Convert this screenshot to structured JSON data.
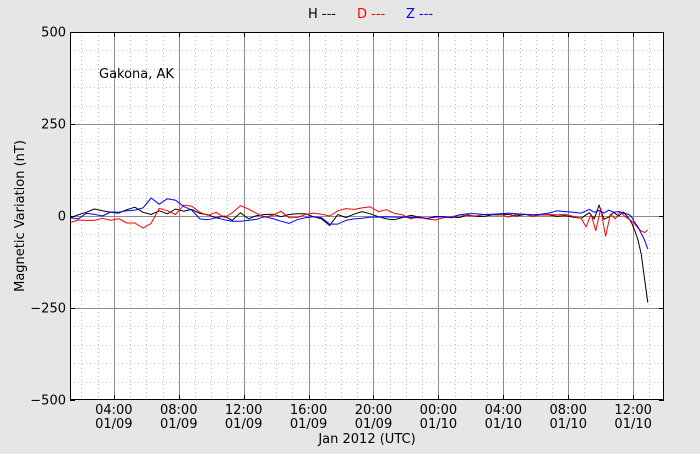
{
  "chart_data": {
    "type": "line",
    "station": "Gakona, AK",
    "ylabel": "Magnetic Variation (nT)",
    "xlabel": "Jan 2012 (UTC)",
    "ylim": [
      -500,
      500
    ],
    "yticks": [
      -500,
      -250,
      0,
      250,
      500
    ],
    "ytick_labels": [
      "−500",
      "−250",
      "0",
      "250",
      "500"
    ],
    "xlim": [
      1.3,
      37.9
    ],
    "xticks": [
      {
        "hours": 4,
        "time": "04:00",
        "date": "01/09"
      },
      {
        "hours": 8,
        "time": "08:00",
        "date": "01/09"
      },
      {
        "hours": 12,
        "time": "12:00",
        "date": "01/09"
      },
      {
        "hours": 16,
        "time": "16:00",
        "date": "01/09"
      },
      {
        "hours": 20,
        "time": "20:00",
        "date": "01/09"
      },
      {
        "hours": 24,
        "time": "00:00",
        "date": "01/10"
      },
      {
        "hours": 28,
        "time": "04:00",
        "date": "01/10"
      },
      {
        "hours": 32,
        "time": "08:00",
        "date": "01/10"
      },
      {
        "hours": 36,
        "time": "12:00",
        "date": "01/10"
      }
    ],
    "grid": true,
    "legend_placement": "top-center",
    "series": [
      {
        "name": "H ---",
        "color": "#000000",
        "points": [
          [
            1.3,
            -5
          ],
          [
            1.8,
            3
          ],
          [
            2.3,
            10
          ],
          [
            2.8,
            19
          ],
          [
            3.3,
            14
          ],
          [
            3.8,
            10
          ],
          [
            4.3,
            8
          ],
          [
            4.8,
            17
          ],
          [
            5.3,
            24
          ],
          [
            5.8,
            10
          ],
          [
            6.3,
            4
          ],
          [
            6.8,
            14
          ],
          [
            7.3,
            6
          ],
          [
            7.8,
            19
          ],
          [
            8.3,
            13
          ],
          [
            8.8,
            18
          ],
          [
            9.3,
            7
          ],
          [
            9.8,
            3
          ],
          [
            10.3,
            -5
          ],
          [
            10.8,
            0
          ],
          [
            11.3,
            -12
          ],
          [
            11.8,
            9
          ],
          [
            12.3,
            -8
          ],
          [
            12.8,
            1
          ],
          [
            13.3,
            4
          ],
          [
            13.8,
            5
          ],
          [
            14.3,
            -2
          ],
          [
            14.8,
            4
          ],
          [
            15.3,
            6
          ],
          [
            15.8,
            6
          ],
          [
            16.3,
            -2
          ],
          [
            16.8,
            -8
          ],
          [
            17.3,
            -26
          ],
          [
            17.8,
            4
          ],
          [
            18.3,
            -4
          ],
          [
            18.8,
            5
          ],
          [
            19.3,
            12
          ],
          [
            19.8,
            6
          ],
          [
            20.3,
            -2
          ],
          [
            20.8,
            -8
          ],
          [
            21.3,
            -10
          ],
          [
            21.8,
            -4
          ],
          [
            22.3,
            2
          ],
          [
            22.8,
            -3
          ],
          [
            23.3,
            -8
          ],
          [
            23.8,
            -1
          ],
          [
            24.3,
            -2
          ],
          [
            24.8,
            -3
          ],
          [
            25.3,
            -4
          ],
          [
            25.8,
            3
          ],
          [
            26.3,
            -1
          ],
          [
            26.8,
            -1
          ],
          [
            27.3,
            3
          ],
          [
            27.8,
            3
          ],
          [
            28.3,
            5
          ],
          [
            28.8,
            0
          ],
          [
            29.3,
            4
          ],
          [
            29.8,
            3
          ],
          [
            30.3,
            3
          ],
          [
            30.8,
            3
          ],
          [
            31.3,
            -1
          ],
          [
            31.8,
            1
          ],
          [
            32.3,
            -3
          ],
          [
            32.8,
            -6
          ],
          [
            33.3,
            9
          ],
          [
            33.6,
            -8
          ],
          [
            33.9,
            30
          ],
          [
            34.2,
            -9
          ],
          [
            34.5,
            -3
          ],
          [
            34.8,
            10
          ],
          [
            35.1,
            0
          ],
          [
            35.4,
            11
          ],
          [
            35.7,
            -5
          ],
          [
            35.9,
            -18
          ],
          [
            36.1,
            -40
          ],
          [
            36.3,
            -65
          ],
          [
            36.5,
            -105
          ],
          [
            36.7,
            -170
          ],
          [
            36.9,
            -235
          ]
        ]
      },
      {
        "name": "D ---",
        "color": "#ff0000",
        "points": [
          [
            1.3,
            -18
          ],
          [
            1.8,
            -11
          ],
          [
            2.3,
            -12
          ],
          [
            2.8,
            -12
          ],
          [
            3.3,
            -6
          ],
          [
            3.8,
            -12
          ],
          [
            4.3,
            -7
          ],
          [
            4.8,
            -19
          ],
          [
            5.3,
            -19
          ],
          [
            5.8,
            -33
          ],
          [
            6.3,
            -20
          ],
          [
            6.8,
            21
          ],
          [
            7.3,
            14
          ],
          [
            7.8,
            4
          ],
          [
            8.3,
            29
          ],
          [
            8.8,
            27
          ],
          [
            9.3,
            10
          ],
          [
            9.8,
            2
          ],
          [
            10.3,
            10
          ],
          [
            10.8,
            -4
          ],
          [
            11.3,
            9
          ],
          [
            11.8,
            28
          ],
          [
            12.3,
            19
          ],
          [
            12.8,
            7
          ],
          [
            13.3,
            -3
          ],
          [
            13.8,
            2
          ],
          [
            14.3,
            13
          ],
          [
            14.8,
            -5
          ],
          [
            15.3,
            -4
          ],
          [
            15.8,
            4
          ],
          [
            16.3,
            8
          ],
          [
            16.8,
            5
          ],
          [
            17.3,
            0
          ],
          [
            17.8,
            14
          ],
          [
            18.3,
            20
          ],
          [
            18.8,
            18
          ],
          [
            19.3,
            22
          ],
          [
            19.8,
            25
          ],
          [
            20.3,
            12
          ],
          [
            20.8,
            17
          ],
          [
            21.3,
            7
          ],
          [
            21.8,
            3
          ],
          [
            22.3,
            -8
          ],
          [
            22.8,
            -1
          ],
          [
            23.3,
            -8
          ],
          [
            23.8,
            -11
          ],
          [
            24.3,
            -5
          ],
          [
            24.8,
            -2
          ],
          [
            25.3,
            3
          ],
          [
            25.8,
            1
          ],
          [
            26.3,
            0
          ],
          [
            26.8,
            4
          ],
          [
            27.3,
            4
          ],
          [
            27.8,
            5
          ],
          [
            28.3,
            -3
          ],
          [
            28.8,
            4
          ],
          [
            29.3,
            5
          ],
          [
            29.8,
            -1
          ],
          [
            30.3,
            3
          ],
          [
            30.8,
            4
          ],
          [
            31.3,
            3
          ],
          [
            31.8,
            5
          ],
          [
            32.3,
            -1
          ],
          [
            32.8,
            -6
          ],
          [
            33.1,
            -30
          ],
          [
            33.4,
            5
          ],
          [
            33.7,
            -40
          ],
          [
            34.0,
            20
          ],
          [
            34.3,
            -55
          ],
          [
            34.6,
            5
          ],
          [
            34.9,
            -8
          ],
          [
            35.2,
            12
          ],
          [
            35.5,
            -2
          ],
          [
            35.8,
            -10
          ],
          [
            36.1,
            -22
          ],
          [
            36.4,
            -38
          ],
          [
            36.7,
            -45
          ],
          [
            36.9,
            -38
          ]
        ]
      },
      {
        "name": "Z ---",
        "color": "#0000ff",
        "points": [
          [
            1.3,
            -5
          ],
          [
            1.8,
            -8
          ],
          [
            2.3,
            7
          ],
          [
            2.8,
            5
          ],
          [
            3.3,
            0
          ],
          [
            3.8,
            11
          ],
          [
            4.3,
            10
          ],
          [
            4.8,
            14
          ],
          [
            5.3,
            16
          ],
          [
            5.8,
            22
          ],
          [
            6.3,
            49
          ],
          [
            6.8,
            32
          ],
          [
            7.3,
            47
          ],
          [
            7.8,
            43
          ],
          [
            8.3,
            26
          ],
          [
            8.8,
            16
          ],
          [
            9.3,
            -8
          ],
          [
            9.8,
            -10
          ],
          [
            10.3,
            -5
          ],
          [
            10.8,
            -10
          ],
          [
            11.3,
            -14
          ],
          [
            11.8,
            -14
          ],
          [
            12.3,
            -12
          ],
          [
            12.8,
            -9
          ],
          [
            13.3,
            -2
          ],
          [
            13.8,
            -7
          ],
          [
            14.3,
            -14
          ],
          [
            14.8,
            -20
          ],
          [
            15.3,
            -10
          ],
          [
            15.8,
            -5
          ],
          [
            16.3,
            -2
          ],
          [
            16.8,
            -5
          ],
          [
            17.3,
            -22
          ],
          [
            17.8,
            -22
          ],
          [
            18.3,
            -12
          ],
          [
            18.8,
            -8
          ],
          [
            19.3,
            -6
          ],
          [
            19.8,
            -3
          ],
          [
            20.3,
            -3
          ],
          [
            20.8,
            -2
          ],
          [
            21.3,
            -3
          ],
          [
            21.8,
            -3
          ],
          [
            22.3,
            -4
          ],
          [
            22.8,
            -5
          ],
          [
            23.3,
            -6
          ],
          [
            23.8,
            -3
          ],
          [
            24.3,
            -2
          ],
          [
            24.8,
            -5
          ],
          [
            25.3,
            3
          ],
          [
            25.8,
            6
          ],
          [
            26.3,
            6
          ],
          [
            26.8,
            4
          ],
          [
            27.3,
            5
          ],
          [
            27.8,
            6
          ],
          [
            28.3,
            8
          ],
          [
            28.8,
            6
          ],
          [
            29.3,
            5
          ],
          [
            29.8,
            3
          ],
          [
            30.3,
            5
          ],
          [
            30.8,
            8
          ],
          [
            31.3,
            14
          ],
          [
            31.8,
            12
          ],
          [
            32.3,
            10
          ],
          [
            32.8,
            8
          ],
          [
            33.3,
            18
          ],
          [
            33.6,
            10
          ],
          [
            33.9,
            15
          ],
          [
            34.2,
            8
          ],
          [
            34.5,
            16
          ],
          [
            34.8,
            10
          ],
          [
            35.1,
            12
          ],
          [
            35.4,
            8
          ],
          [
            35.7,
            5
          ],
          [
            35.9,
            -2
          ],
          [
            36.1,
            -18
          ],
          [
            36.3,
            -30
          ],
          [
            36.5,
            -48
          ],
          [
            36.7,
            -65
          ],
          [
            36.9,
            -90
          ]
        ]
      }
    ]
  }
}
